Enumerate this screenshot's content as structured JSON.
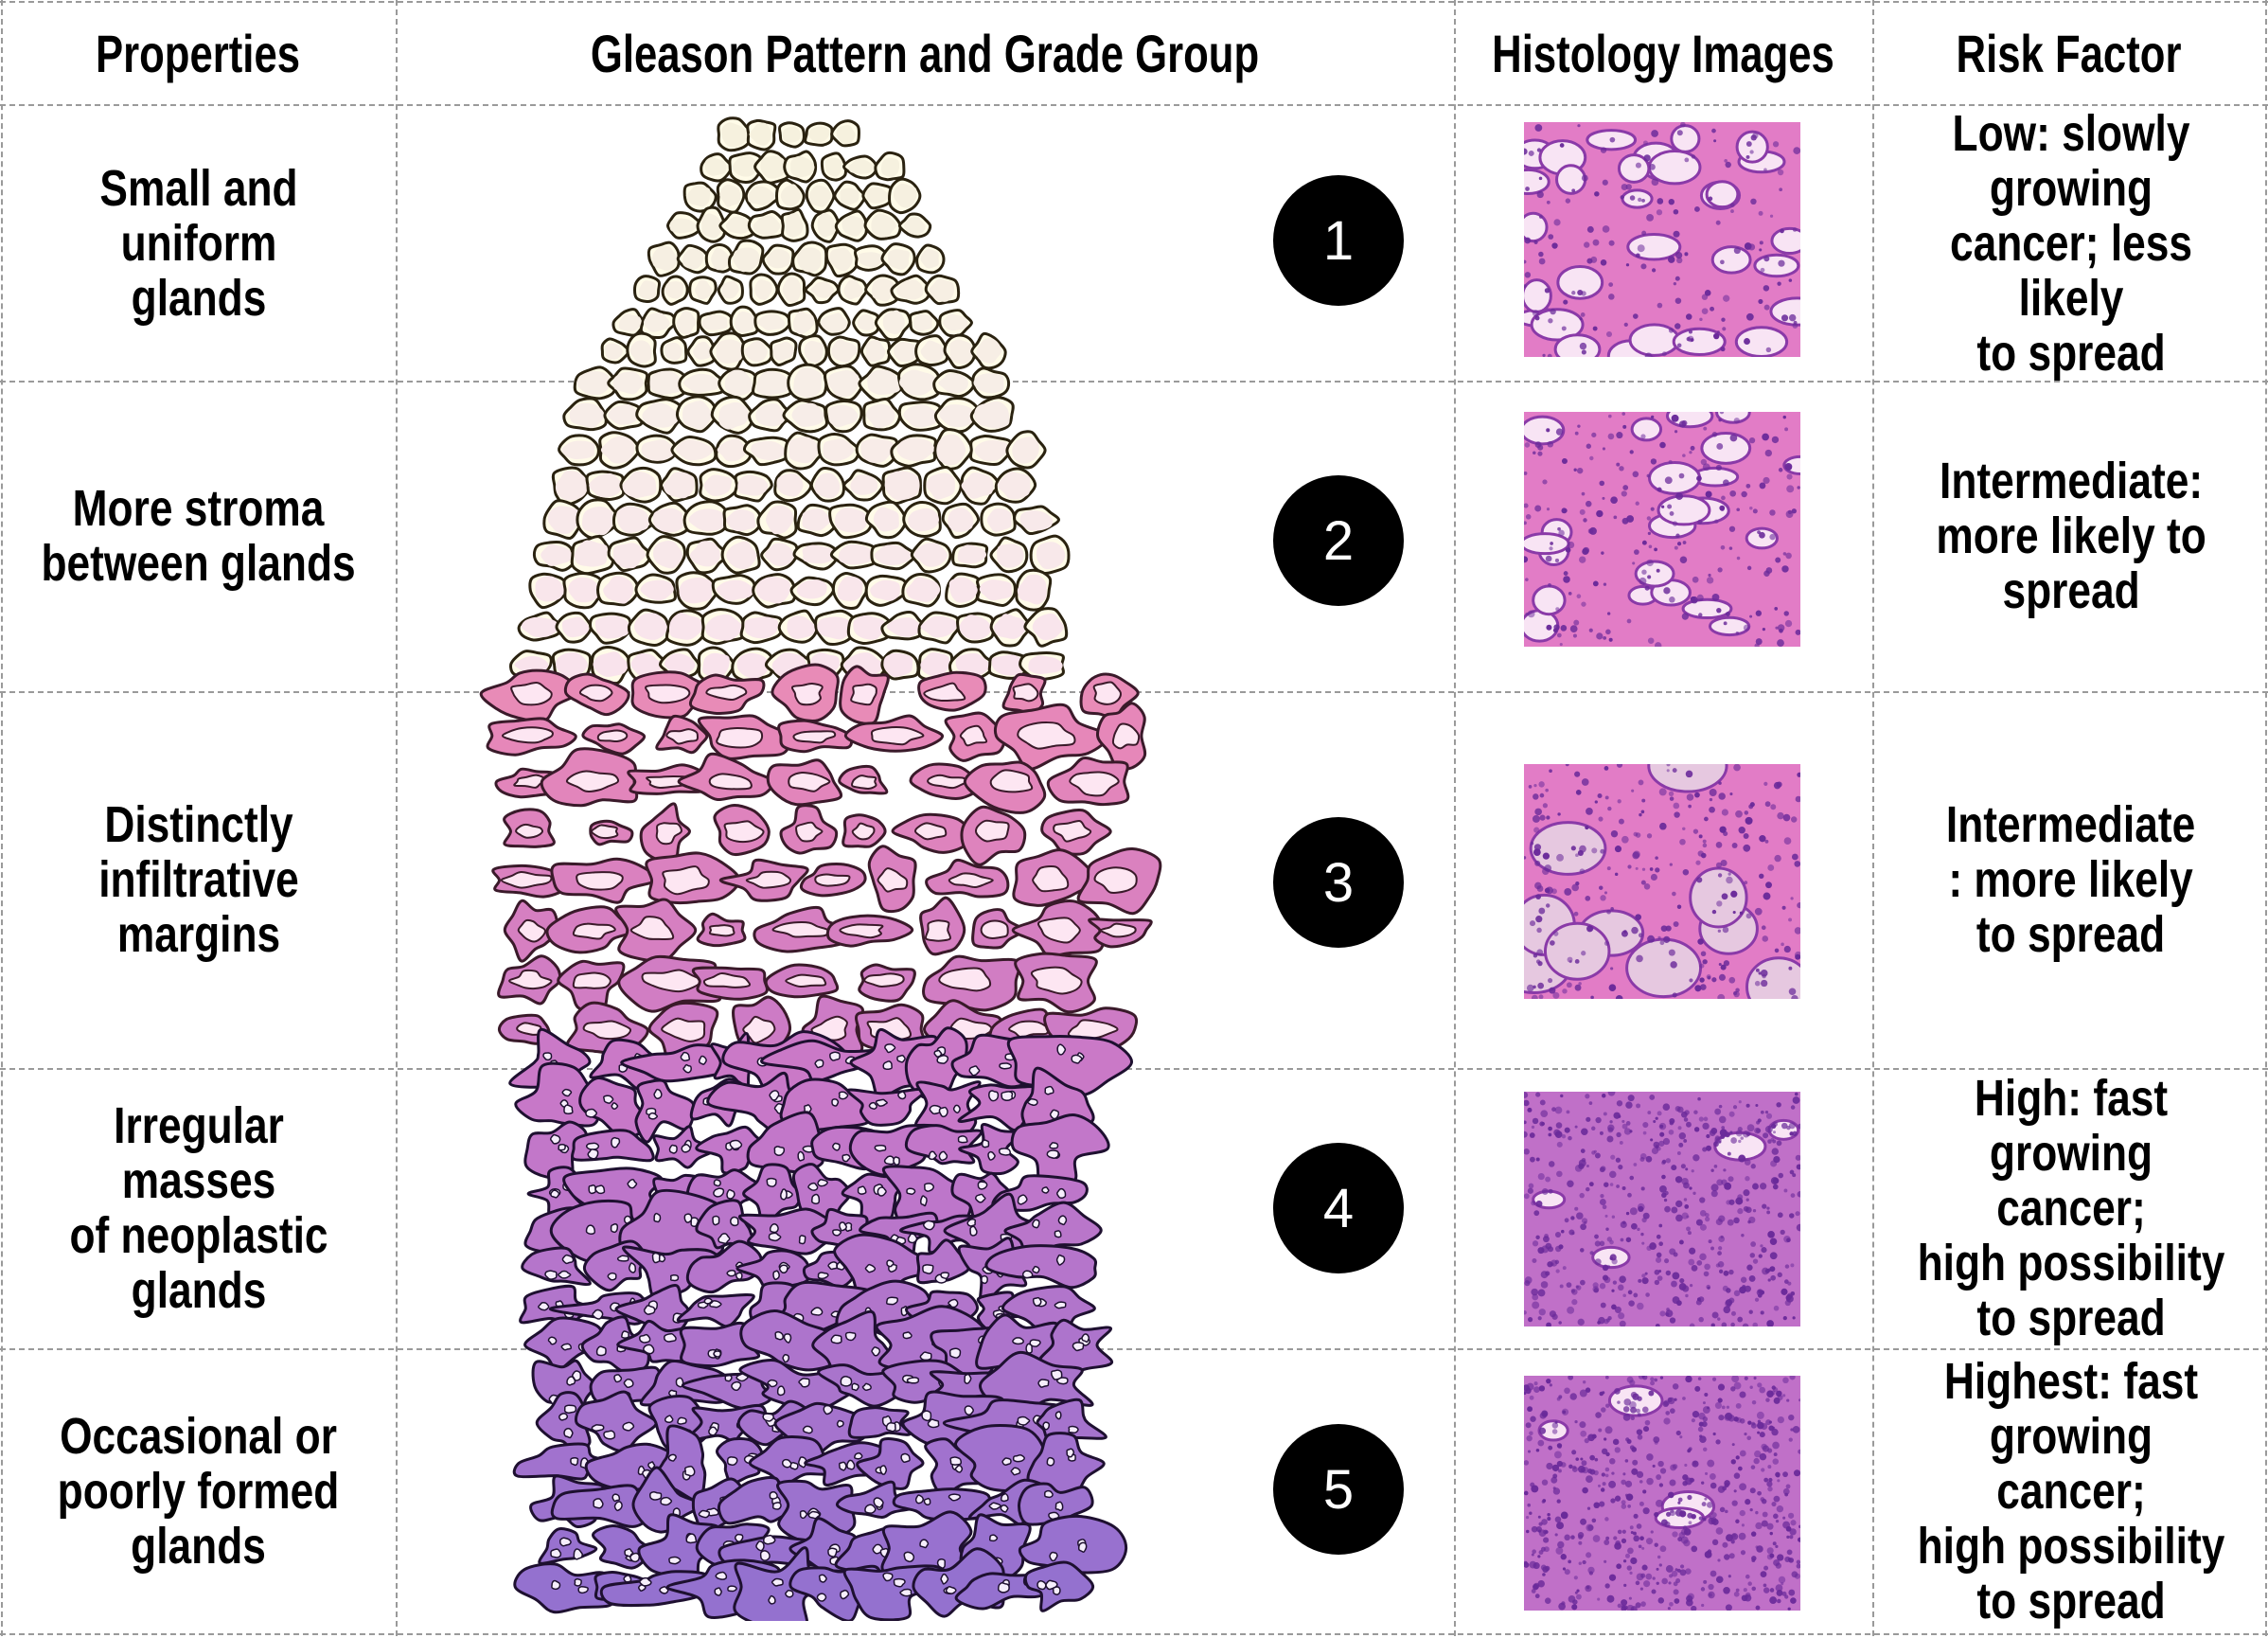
{
  "headers": {
    "properties": "Properties",
    "gleason": "Gleason Pattern and Grade Group",
    "histology": "Histology Images",
    "risk": "Risk Factor"
  },
  "rows": [
    {
      "property": "Small and uniform\nglands",
      "grade": "1",
      "risk": "Low: slowly growing\ncancer; less likely\nto spread"
    },
    {
      "property": "More stroma\nbetween glands",
      "grade": "2",
      "risk": "Intermediate:\nmore likely to\nspread"
    },
    {
      "property": "Distinctly\ninfiltrative margins",
      "grade": "3",
      "risk": "Intermediate\n: more likely\nto spread"
    },
    {
      "property": "Irregular masses\nof neoplastic\nglands",
      "grade": "4",
      "risk": "High: fast\ngrowing cancer;\nhigh possibility\nto spread"
    },
    {
      "property": "Occasional or\npoorly formed\nglands",
      "grade": "5",
      "risk": "Highest: fast\ngrowing cancer;\nhigh possibility\nto spread"
    }
  ],
  "colors": {
    "grid": "#9a9a9a",
    "tissue_grade1": "#d8c878",
    "tissue_grade2": "#e0b8a0",
    "tissue_grade3": "#e888b8",
    "tissue_grade4": "#c878c8",
    "tissue_grade5": "#9070d0",
    "stain_pink": "#e070c0",
    "stain_purple": "#6a2a9a"
  }
}
